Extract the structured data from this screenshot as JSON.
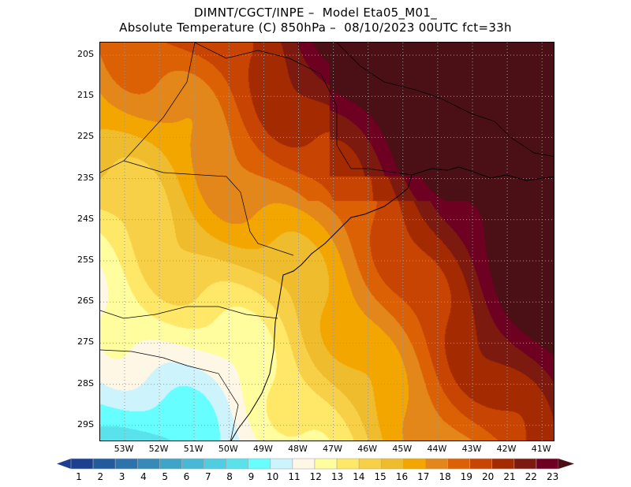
{
  "title": {
    "line1": "DIMNT/CGCT/INPE –  Model Eta05_M01_",
    "line2": "Absolute Temperature (C) 850hPa –  08/10/2023 00UTC fct=33h"
  },
  "map": {
    "variable": "Absolute Temperature (C)",
    "level": "850hPa",
    "lat_labels": [
      "20S",
      "21S",
      "22S",
      "23S",
      "24S",
      "25S",
      "26S",
      "27S",
      "28S",
      "29S"
    ],
    "lon_labels": [
      "53W",
      "52W",
      "51W",
      "50W",
      "49W",
      "48W",
      "47W",
      "46W",
      "45W",
      "44W",
      "43W",
      "42W",
      "41W"
    ],
    "lat_range": [
      -29.5,
      -19.7
    ],
    "lon_range": [
      -53.7,
      -40.6
    ]
  },
  "colorbar": {
    "labels": [
      "1",
      "2",
      "3",
      "4",
      "5",
      "6",
      "7",
      "8",
      "9",
      "10",
      "11",
      "12",
      "13",
      "14",
      "15",
      "16",
      "17",
      "18",
      "19",
      "20",
      "21",
      "22",
      "23"
    ],
    "colors": [
      "#1c3f8f",
      "#225a9e",
      "#2c73ae",
      "#368ab9",
      "#3fa5c8",
      "#48b8d4",
      "#50cde0",
      "#5ae2ec",
      "#66fefe",
      "#cdf4fd",
      "#fff7e6",
      "#fffd9e",
      "#ffe867",
      "#f8d047",
      "#eebc2c",
      "#f4a600",
      "#e4871a",
      "#dc6105",
      "#c84403",
      "#a42a02",
      "#7c1a10",
      "#6e0022"
    ],
    "under_color": "#1c3f8f",
    "over_color": "#4a1015"
  }
}
